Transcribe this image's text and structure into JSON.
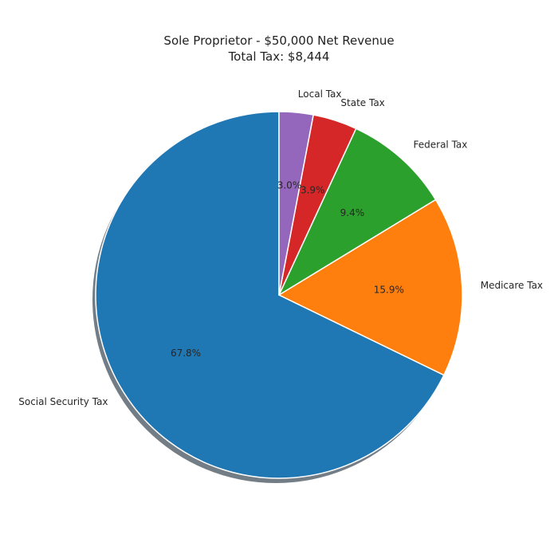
{
  "chart_data": {
    "type": "pie",
    "title": "Sole Proprietor - $50,000 Net Revenue",
    "subtitle": "Total Tax: $8,444",
    "start_angle_deg": 90,
    "direction": "counterclockwise",
    "shadow": true,
    "edge_color": "#ffffff",
    "slices": [
      {
        "label": "Social Security Tax",
        "value": 67.8,
        "pct_label": "67.8%",
        "color": "#1f77b4"
      },
      {
        "label": "Medicare Tax",
        "value": 15.9,
        "pct_label": "15.9%",
        "color": "#ff7f0e"
      },
      {
        "label": "Federal Tax",
        "value": 9.4,
        "pct_label": "9.4%",
        "color": "#2ca02c"
      },
      {
        "label": "State Tax",
        "value": 3.9,
        "pct_label": "3.9%",
        "color": "#d62728"
      },
      {
        "label": "Local Tax",
        "value": 3.0,
        "pct_label": "3.0%",
        "color": "#9467bd"
      }
    ]
  }
}
